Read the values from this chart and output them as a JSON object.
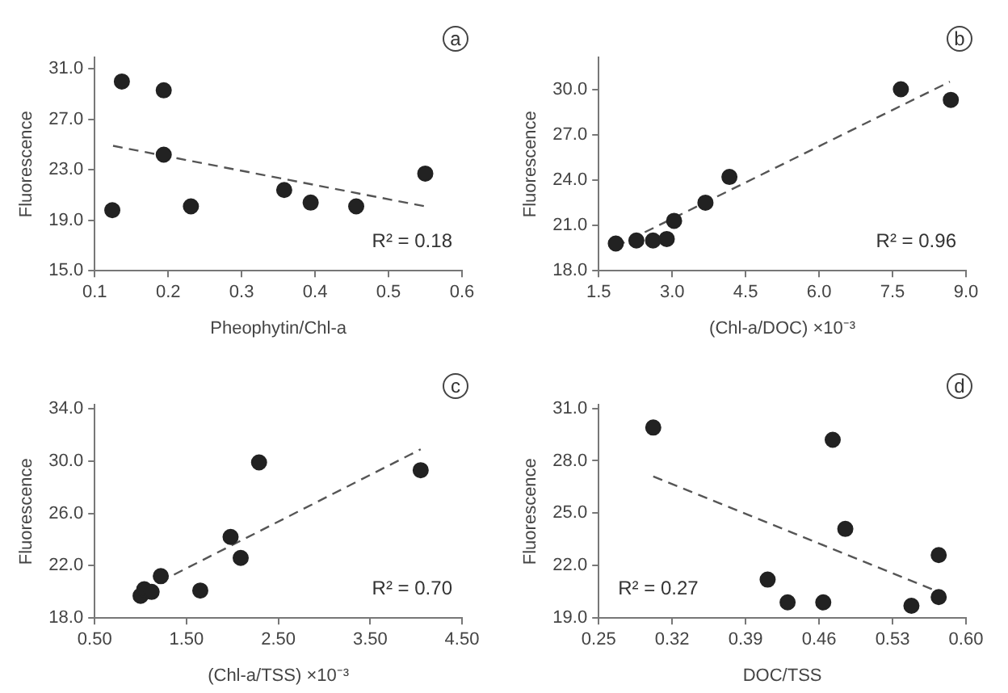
{
  "chart_data": [
    {
      "type": "scatter",
      "title": "a",
      "xlabel": "Pheophytin/Chl-a",
      "ylabel": "Fluorescence",
      "annotations": [
        "R² = 0.18"
      ],
      "grid": false,
      "legend": false,
      "marker": "circle",
      "xlim": [
        0.1,
        0.6
      ],
      "xticks": [
        0.1,
        0.2,
        0.3,
        0.4,
        0.5,
        0.6
      ],
      "ylim": [
        15,
        31.9
      ],
      "yticks": [
        {
          "value": 15,
          "label": "15.0"
        },
        {
          "value": 19,
          "label": "19.0"
        },
        {
          "value": 23,
          "label": "23.0"
        },
        {
          "value": 27,
          "label": "27.0"
        },
        {
          "value": 31,
          "label": "31.0"
        }
      ],
      "series": [
        {
          "color": "#222222",
          "x": [
            0.137,
            0.194,
            0.194,
            0.124,
            0.231,
            0.358,
            0.394,
            0.456,
            0.55
          ],
          "values": [
            30.0,
            29.3,
            24.2,
            19.8,
            20.1,
            21.4,
            20.4,
            20.1,
            22.7
          ]
        },
        {
          "type": "line",
          "color": "#555555",
          "line_style": "dashed",
          "marker": "none",
          "x": [
            0.125,
            0.55
          ],
          "values": [
            24.9,
            20.1
          ]
        }
      ]
    },
    {
      "type": "scatter",
      "title": "b",
      "xlabel": "(Chl-a/DOC) ×10⁻³",
      "ylabel": "Fluorescence",
      "annotations": [
        "R² = 0.96"
      ],
      "grid": false,
      "legend": false,
      "marker": "circle",
      "xlim": [
        1.5,
        9.0
      ],
      "xticks": [
        1.5,
        {
          "value": 3,
          "label": "3.0"
        },
        4.5,
        {
          "value": 6,
          "label": "6.0"
        },
        7.5,
        {
          "value": 9,
          "label": "9.0"
        }
      ],
      "ylim": [
        18,
        32.1
      ],
      "yticks": [
        {
          "value": 18,
          "label": "18.0"
        },
        {
          "value": 21,
          "label": "21.0"
        },
        {
          "value": 24,
          "label": "24.0"
        },
        {
          "value": 27,
          "label": "27.0"
        },
        {
          "value": 30,
          "label": "30.0"
        }
      ],
      "series": [
        {
          "color": "#222222",
          "x": [
            1.85,
            2.27,
            2.61,
            2.89,
            3.04,
            3.68,
            4.17,
            7.67,
            8.69
          ],
          "values": [
            19.8,
            20.0,
            20.0,
            20.1,
            21.3,
            22.5,
            24.2,
            30.0,
            29.3
          ]
        },
        {
          "type": "line",
          "color": "#555555",
          "line_style": "dashed",
          "marker": "none",
          "x": [
            1.85,
            8.67
          ],
          "values": [
            19.6,
            30.5
          ]
        }
      ]
    },
    {
      "type": "scatter",
      "title": "c",
      "xlabel": "(Chl-a/TSS) ×10⁻³",
      "ylabel": "Fluorescence",
      "annotations": [
        "R² = 0.70"
      ],
      "grid": false,
      "legend": false,
      "marker": "circle",
      "xlim": [
        0.5,
        4.5
      ],
      "xticks": [
        {
          "value": 0.5,
          "label": "0.50"
        },
        {
          "value": 1.5,
          "label": "1.50"
        },
        {
          "value": 2.5,
          "label": "2.50"
        },
        {
          "value": 3.5,
          "label": "3.50"
        },
        {
          "value": 4.5,
          "label": "4.50"
        }
      ],
      "ylim": [
        18,
        34.3
      ],
      "yticks": [
        {
          "value": 18,
          "label": "18.0"
        },
        {
          "value": 22,
          "label": "22.0"
        },
        {
          "value": 26,
          "label": "26.0"
        },
        {
          "value": 30,
          "label": "30.0"
        },
        {
          "value": 34,
          "label": "34.0"
        }
      ],
      "series": [
        {
          "color": "#222222",
          "x": [
            1.0,
            1.04,
            1.12,
            1.22,
            1.65,
            1.98,
            2.09,
            2.29,
            4.05
          ],
          "values": [
            19.7,
            20.2,
            20.0,
            21.2,
            20.1,
            24.2,
            22.6,
            29.9,
            29.3
          ]
        },
        {
          "type": "line",
          "color": "#555555",
          "line_style": "dashed",
          "marker": "none",
          "x": [
            1.05,
            4.05
          ],
          "values": [
            20.2,
            30.9
          ]
        }
      ]
    },
    {
      "type": "scatter",
      "title": "d",
      "xlabel": "DOC/TSS",
      "ylabel": "Fluorescence",
      "annotations": [
        "R² = 0.27"
      ],
      "grid": false,
      "legend": false,
      "marker": "circle",
      "xlim": [
        0.25,
        0.6
      ],
      "xticks": [
        0.25,
        0.32,
        0.39,
        0.46,
        0.53,
        {
          "value": 0.6,
          "label": "0.60"
        }
      ],
      "ylim": [
        19,
        31.2
      ],
      "yticks": [
        {
          "value": 19,
          "label": "19.0"
        },
        {
          "value": 22,
          "label": "22.0"
        },
        {
          "value": 25,
          "label": "25.0"
        },
        {
          "value": 28,
          "label": "28.0"
        },
        {
          "value": 31,
          "label": "31.0"
        }
      ],
      "series": [
        {
          "color": "#222222",
          "x": [
            0.302,
            0.473,
            0.485,
            0.411,
            0.43,
            0.464,
            0.548,
            0.574,
            0.574
          ],
          "values": [
            29.9,
            29.2,
            24.1,
            21.2,
            19.9,
            19.9,
            19.7,
            20.2,
            22.6
          ]
        },
        {
          "type": "line",
          "color": "#555555",
          "line_style": "dashed",
          "marker": "none",
          "x": [
            0.302,
            0.574
          ],
          "values": [
            27.1,
            20.5
          ]
        }
      ]
    }
  ]
}
